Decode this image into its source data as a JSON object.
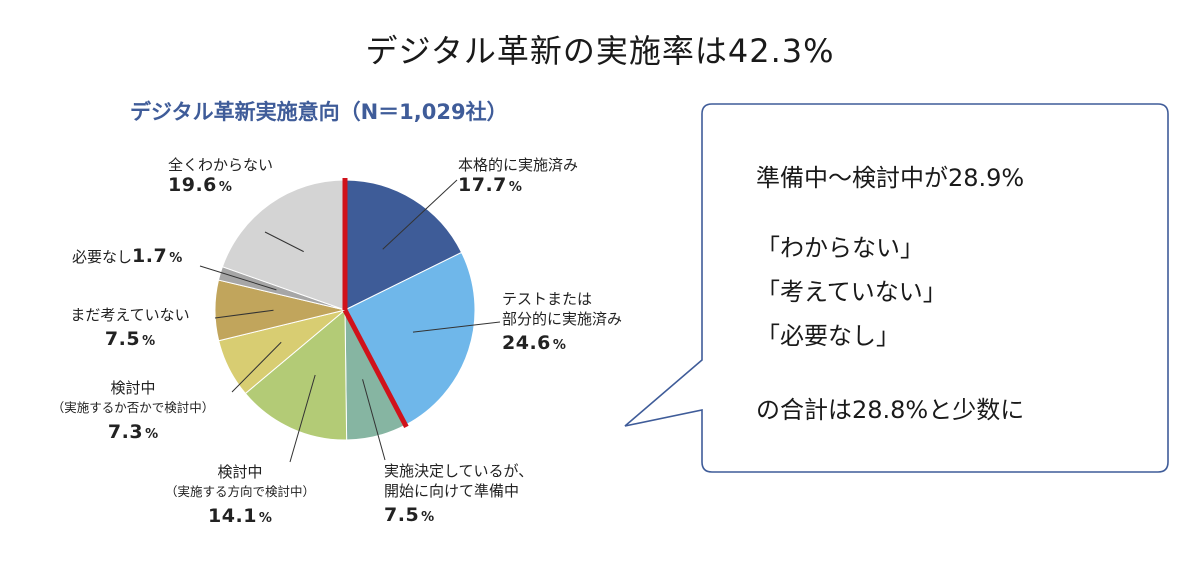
{
  "main_title": "デジタル革新の実施率は42.3%",
  "chart_title": "デジタル革新実施意向（N＝1,029社）",
  "colors": {
    "title_blue": "#3f5c99",
    "highlight_line": "#d0121b",
    "callout_border": "#3f5c99"
  },
  "chart_data": {
    "type": "pie",
    "title": "デジタル革新実施意向（N＝1,029社）",
    "unit": "%",
    "slices": [
      {
        "label": "本格的に実施済み",
        "value": 17.7,
        "color": "#3e5c98"
      },
      {
        "label": "テストまたは部分的に実施済み",
        "value": 24.6,
        "color": "#6fb7ea"
      },
      {
        "label": "実施決定しているが、開始に向けて準備中",
        "value": 7.5,
        "color": "#86b5a2"
      },
      {
        "label": "検討中（実施する方向で検討中）",
        "value": 14.1,
        "color": "#b3cb76"
      },
      {
        "label": "検討中（実施するか否かで検討中）",
        "value": 7.3,
        "color": "#d8cd72"
      },
      {
        "label": "まだ考えていない",
        "value": 7.5,
        "color": "#c1a55c"
      },
      {
        "label": "必要なし",
        "value": 1.7,
        "color": "#a6a6a6"
      },
      {
        "label": "全くわからない",
        "value": 19.6,
        "color": "#d4d4d4"
      }
    ],
    "highlight_split_after_index": 1
  },
  "labels": {
    "s0_name": "本格的に実施済み",
    "s0_val": "17.7",
    "s0_pct": "%",
    "s1_name1": "テストまたは",
    "s1_name2": "部分的に実施済み",
    "s1_val": "24.6",
    "s1_pct": "%",
    "s2_name1": "実施決定しているが、",
    "s2_name2": "開始に向けて準備中",
    "s2_val": "7.5",
    "s2_pct": "%",
    "s3_name": "検討中",
    "s3_sub": "（実施する方向で検討中）",
    "s3_val": "14.1",
    "s3_pct": "%",
    "s4_name": "検討中",
    "s4_sub": "（実施するか否かで検討中）",
    "s4_val": "7.3",
    "s4_pct": "%",
    "s5_name": "まだ考えていない",
    "s5_val": "7.5",
    "s5_pct": "%",
    "s6_name": "必要なし",
    "s6_val": "1.7",
    "s6_pct": "%",
    "s7_name": "全くわからない",
    "s7_val": "19.6",
    "s7_pct": "%"
  },
  "callout": {
    "line1": "準備中～検討中が28.9%",
    "line2": "「わからない」",
    "line3": "「考えていない」",
    "line4": "「必要なし」",
    "line5": "の合計は28.8%と少数に"
  }
}
